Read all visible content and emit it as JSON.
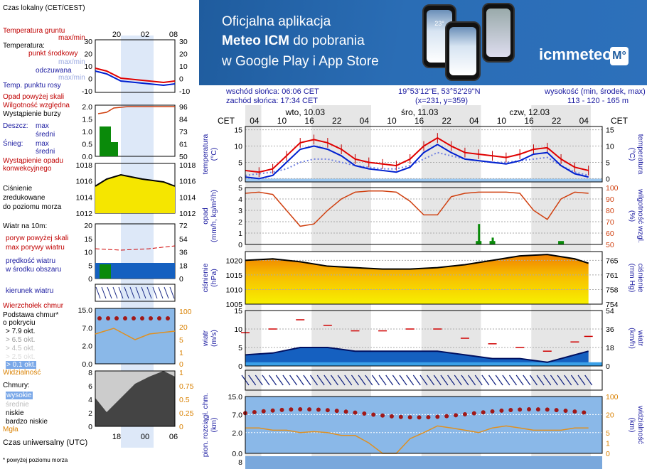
{
  "banner": {
    "line1": "Oficjalna aplikacja",
    "line2_bold": "Meteo ICM",
    "line2_rest": " do pobrania",
    "line3": "w Google Play i App Store",
    "logo": "icmmeteo",
    "logo_badge": "M°",
    "phone_temp": "23°"
  },
  "header": {
    "sunrise": "wschód słońca: 06:06 CET",
    "sunset": "zachód słońca: 17:34 CET",
    "coords": "19°53'12\"E, 53°52'29\"N",
    "grid": "(x=231,  y=359)",
    "elevation_label": "wysokość (min, środek, max)",
    "elevation_values": "113 - 120 - 165 m"
  },
  "legend": {
    "time_local": "Czas lokalny\n(CET/CEST)",
    "time_local_ticks": [
      "20",
      "02",
      "08"
    ],
    "soil_temp": "Temperatura gruntu",
    "soil_maxmin": "max/min",
    "temperature": "Temperatura:",
    "mid_point": "punkt środkowy",
    "max_min_a": "max/min",
    "apparent": "odczuwana",
    "max_min_b": "max/min",
    "dew_point": "Temp. punktu rosy",
    "precip_above": "Opad powyżej skali",
    "humidity": "Wilgotność względna",
    "storm": "Wystąpienie burzy",
    "rain": "Deszcz:",
    "rain_max": "max",
    "rain_mean": "średni",
    "snow": "Śnieg:",
    "snow_max": "max",
    "snow_mean": "średni",
    "convective": "Wystąpienie opadu\nkonwekcyjnego",
    "pressure": "Ciśnienie\nzredukowane\ndo poziomu morza",
    "wind10": "Wiatr na 10m:",
    "gust_above": "poryw powyżej skali",
    "gust_max": "max porywy wiatru",
    "wind_speed": "prędkość wiatru\nw środku obszaru",
    "wind_dir": "kierunek wiatru",
    "cloud_top": "Wierzchołek chmur",
    "cloud_base": "Podstawa chmur*\no pokryciu",
    "okt": [
      "> 7.9 okt.",
      "> 6.5 okt.",
      "> 4.5 okt.",
      "> 2.5 okt.",
      "> 0.1 okt."
    ],
    "visibility": "Widzialność",
    "clouds": "Chmury:",
    "high": "wysokie",
    "mid": "średnie",
    "low": "niskie",
    "very_low": "bardzo niskie",
    "fog": "Mgła",
    "utc": "Czas uniwersalny (UTC)",
    "utc_ticks": [
      "18",
      "00",
      "06"
    ],
    "footnote": "* powyżej poziomu morza",
    "l_temp_left": [
      "30",
      "20",
      "10",
      "0",
      "-10"
    ],
    "l_temp_right": [
      "30",
      "20",
      "10",
      "0",
      "-10"
    ],
    "l_prec_left": [
      "2.0",
      "1.5",
      "1.0",
      "0.5",
      "0.0"
    ],
    "l_prec_right": [
      "96",
      "84",
      "73",
      "61",
      "50"
    ],
    "l_pres_left": [
      "1018",
      "1016",
      "1014",
      "1012"
    ],
    "l_pres_right": [
      "1018",
      "1016",
      "1014",
      "1012"
    ],
    "l_wind_left": [
      "20",
      "15",
      "10",
      "5",
      "0"
    ],
    "l_wind_right": [
      "72",
      "54",
      "36",
      "18",
      "0"
    ],
    "l_cb_left": [
      "15.0",
      "7.0",
      "2.0",
      "0.0"
    ],
    "l_cb_right": [
      "100",
      "20",
      "5",
      "1",
      "0"
    ],
    "l_cl_left": [
      "8",
      "6",
      "4",
      "2",
      "0"
    ],
    "l_cl_right": [
      "1",
      "0.75",
      "0.5",
      "0.25",
      "0"
    ]
  },
  "main": {
    "cet_left": "CET",
    "cet_right": "CET",
    "days": [
      "wto, 10.03",
      "śro, 11.03",
      "czw, 12.03"
    ],
    "hours": [
      "04",
      "10",
      "16",
      "22",
      "04",
      "10",
      "16",
      "22",
      "04",
      "10",
      "16",
      "22",
      "04"
    ],
    "temp_title_left": "temperatura\n(°C)",
    "temp_title_right": "(°C)\ntemperatura",
    "prec_title_left": "opad\n(mm/h, kg/m²/h)",
    "prec_title_right": "(%)\nwilgotność wzgl.",
    "pres_title_left": "ciśnienie\n(hPa)",
    "pres_title_right": "(mm Hg)\nciśnienie",
    "wind_title_left": "wiatr\n(m/s)",
    "wind_title_right": "(km/h)\nwiatr",
    "cloud_title_left": "pion. rozciągł. chm.\n(km)",
    "cloud_title_right": "(km)\nwidzialność",
    "temp_ticks_l": [
      "15",
      "10",
      "5",
      "0"
    ],
    "temp_ticks_r": [
      "15",
      "10",
      "5",
      "0"
    ],
    "prec_ticks_l": [
      "5",
      "4",
      "3",
      "2",
      "1",
      "0"
    ],
    "prec_ticks_r": [
      "100",
      "90",
      "80",
      "70",
      "60",
      "50"
    ],
    "pres_ticks_l": [
      "1020",
      "1015",
      "1010",
      "1005"
    ],
    "pres_ticks_r": [
      "761",
      "758",
      "754"
    ],
    "pres_tick_r0": "765",
    "wind_ticks_l": [
      "15",
      "10",
      "5",
      "0"
    ],
    "wind_ticks_r": [
      "54",
      "36",
      "18",
      "0"
    ],
    "cb_ticks_l": [
      "15.0",
      "7.0",
      "2.0",
      "0.0"
    ],
    "cb_ticks_r": [
      "100",
      "20",
      "5",
      "1",
      "0"
    ],
    "bottom_tick": "8"
  },
  "colors": {
    "temp": "#e00000",
    "apparent": "#0020d0",
    "dew": "#7080e0",
    "humidity": "#d04010",
    "pressure_fill": "#f5e600",
    "pressure_line": "#000000",
    "wind_fill": "#1560c0",
    "gust": "#d00000",
    "visibility": "#e09020",
    "night_shade": "#e4e4e4",
    "cloud_bg": "#8ab8e8"
  },
  "chart_data": [
    {
      "type": "line",
      "title": "temperatura",
      "ylabel": "(°C)",
      "ylim": [
        -1,
        16
      ],
      "x_hours_from_start": [
        0,
        3,
        6,
        9,
        12,
        15,
        18,
        21,
        24,
        27,
        30,
        33,
        36,
        39,
        42,
        45,
        48,
        51,
        54,
        57,
        60,
        63,
        66,
        69,
        72,
        75
      ],
      "series": [
        {
          "name": "temperatura",
          "values": [
            2.5,
            2,
            3,
            7,
            11,
            12,
            11,
            9,
            6,
            5,
            4.5,
            4,
            6,
            10,
            12.5,
            10,
            8,
            7.5,
            7,
            6.5,
            7.5,
            9,
            9.5,
            6,
            3.5,
            2.5
          ]
        },
        {
          "name": "odczuwana",
          "values": [
            0.5,
            0,
            1,
            5,
            9,
            10,
            9,
            7,
            4,
            3,
            2.5,
            2,
            3.5,
            8,
            10.5,
            8,
            6,
            5.5,
            5,
            4.5,
            5.5,
            7.5,
            8,
            4,
            1.5,
            0.5
          ]
        },
        {
          "name": "Temp. punktu rosy",
          "values": [
            1,
            1.5,
            2,
            3,
            5,
            6,
            6,
            5,
            4,
            3.5,
            3,
            3,
            4,
            6,
            8,
            7,
            6,
            5.5,
            5,
            5,
            5.5,
            6,
            6.5,
            4,
            2,
            1
          ]
        }
      ]
    },
    {
      "type": "line",
      "title": "opad",
      "ylabel": "(mm/h, kg/m²/h)",
      "ylim": [
        0,
        5
      ],
      "x_hours_from_start": [
        0,
        3,
        6,
        9,
        12,
        15,
        18,
        21,
        24,
        27,
        30,
        33,
        36,
        39,
        42,
        45,
        48,
        51,
        54,
        57,
        60,
        63,
        66,
        69,
        72,
        75
      ],
      "series": [
        {
          "name": "wilgotność wzgl.",
          "values": [
            95,
            96,
            94,
            80,
            66,
            68,
            80,
            90,
            96,
            97,
            97,
            96,
            88,
            76,
            76,
            92,
            95,
            96,
            96,
            96,
            95,
            80,
            72,
            90,
            96,
            95
          ]
        },
        {
          "name": "deszcz",
          "values": [
            0,
            0,
            0,
            0,
            0,
            0,
            0,
            0,
            0,
            0,
            0,
            0,
            0,
            0,
            0,
            0,
            0,
            1.8,
            0.6,
            0,
            0,
            0,
            0,
            0.2,
            0,
            0
          ]
        }
      ]
    },
    {
      "type": "area",
      "title": "ciśnienie",
      "ylabel": "(hPa)",
      "ylim": [
        1005,
        1023
      ],
      "x_hours_from_start": [
        0,
        6,
        12,
        18,
        24,
        30,
        36,
        42,
        48,
        54,
        60,
        66,
        72,
        75
      ],
      "series": [
        {
          "name": "ciśnienie",
          "values": [
            1020,
            1020.5,
            1019.5,
            1018,
            1017.5,
            1017,
            1017,
            1017.5,
            1018.5,
            1020,
            1021.5,
            1022,
            1020.5,
            1019
          ]
        }
      ]
    },
    {
      "type": "area",
      "title": "wiatr",
      "ylabel": "(m/s)",
      "ylim": [
        0,
        15
      ],
      "x_hours_from_start": [
        0,
        6,
        12,
        18,
        24,
        30,
        36,
        42,
        48,
        54,
        60,
        66,
        72,
        75
      ],
      "series": [
        {
          "name": "prędkość wiatru",
          "values": [
            3,
            3.5,
            5,
            5,
            4,
            4,
            4,
            4,
            3,
            2,
            2,
            1,
            3,
            4
          ]
        },
        {
          "name": "max porywy wiatru",
          "values": [
            9,
            10,
            12.5,
            11,
            9.5,
            9.5,
            10,
            10,
            7.5,
            6,
            5,
            4,
            6.5,
            8
          ]
        }
      ]
    }
  ]
}
